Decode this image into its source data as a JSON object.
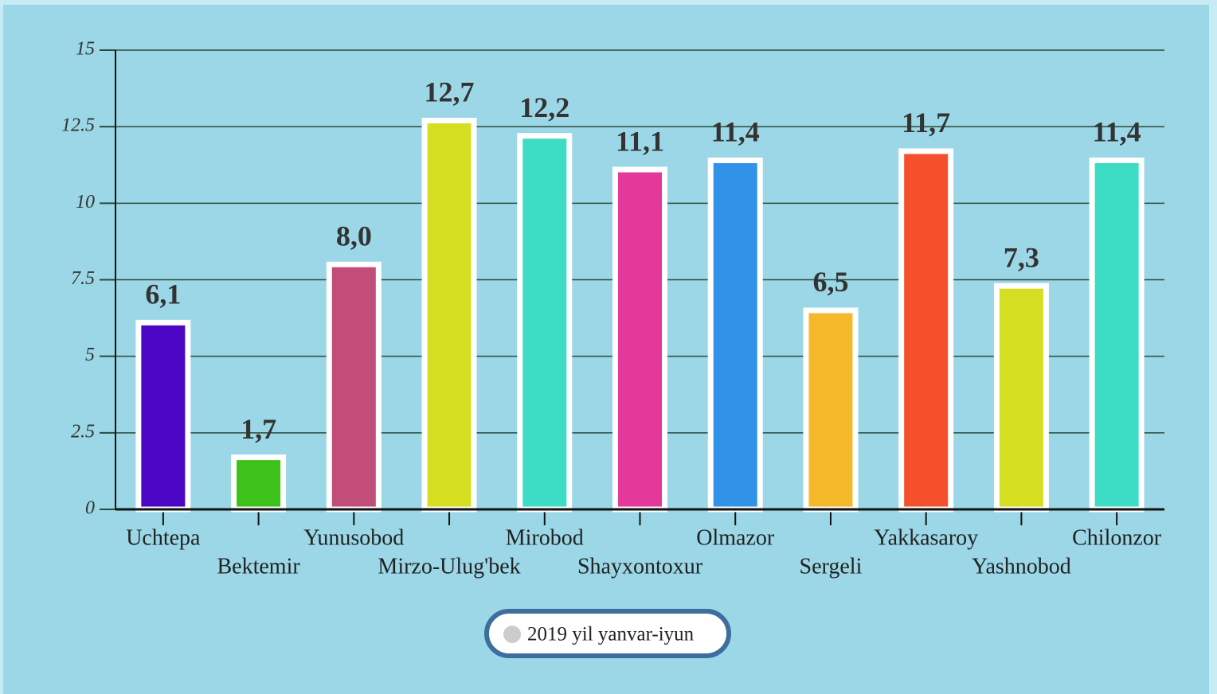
{
  "chart_data": {
    "type": "bar",
    "categories": [
      "Uchtepa",
      "Bektemir",
      "Yunusobod",
      "Mirzo-Ulug'bek",
      "Mirobod",
      "Shayxontoxur",
      "Olmazor",
      "Sergeli",
      "Yakkasaroy",
      "Yashnobod",
      "Chilonzor"
    ],
    "series": [
      {
        "name": "2019 yil yanvar-iyun",
        "color": "#cccccc",
        "bar_colors": [
          "#4a06c4",
          "#3cc21a",
          "#c24d78",
          "#d6de22",
          "#3ddcc4",
          "#e4399a",
          "#3193e8",
          "#f6b82b",
          "#f5502c",
          "#d6de22",
          "#3ddcc4"
        ],
        "values": [
          6.1,
          1.7,
          8.0,
          12.7,
          12.2,
          11.1,
          11.4,
          6.5,
          11.7,
          7.3,
          11.4
        ],
        "value_labels": [
          "6,1",
          "1,7",
          "8,0",
          "12,7",
          "12,2",
          "11,1",
          "11,4",
          "6,5",
          "11,7",
          "7,3",
          "11,4"
        ]
      }
    ],
    "ylim": [
      0,
      15
    ],
    "yticks": [
      0,
      2.5,
      5,
      7.5,
      10,
      12.5,
      15
    ],
    "grid": true,
    "legend": "bottom"
  }
}
